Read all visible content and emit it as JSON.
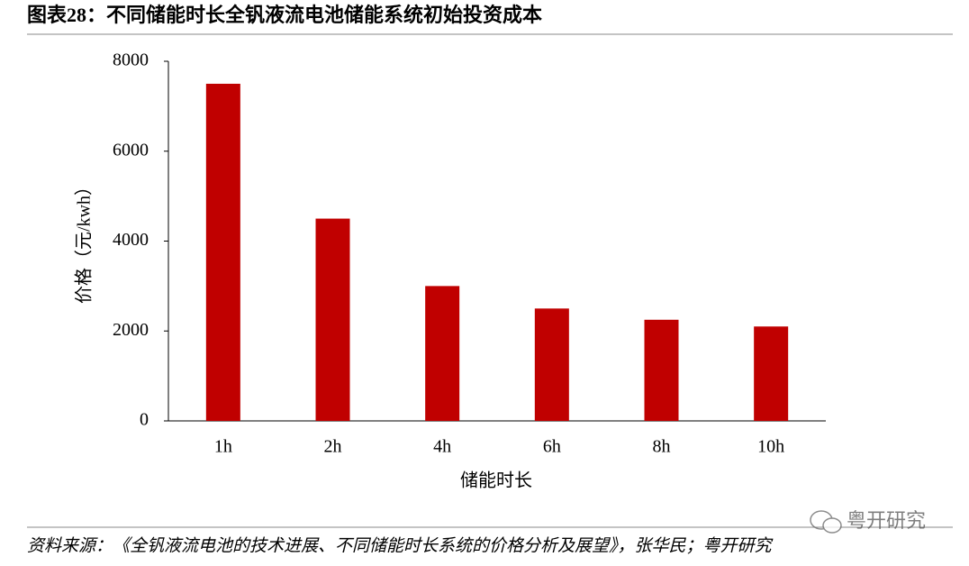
{
  "header": {
    "title": "图表28：不同储能时长全钒液流电池储能系统初始投资成本"
  },
  "chart_data": {
    "type": "bar",
    "x_label": "储能时长",
    "y_label": "价格（元/kwh）",
    "categories": [
      "1h",
      "2h",
      "4h",
      "6h",
      "8h",
      "10h"
    ],
    "values": [
      7500,
      4500,
      3000,
      2500,
      2250,
      2100
    ],
    "color": "#c00000",
    "ylim": [
      0,
      8000
    ],
    "yticks": [
      0,
      2000,
      4000,
      6000,
      8000
    ],
    "grid": false
  },
  "footer": {
    "source": "资料来源：《全钒液流电池的技术进展、不同储能时长系统的价格分析及展望》，张华民；粤开研究",
    "watermark": "粤开研究"
  }
}
